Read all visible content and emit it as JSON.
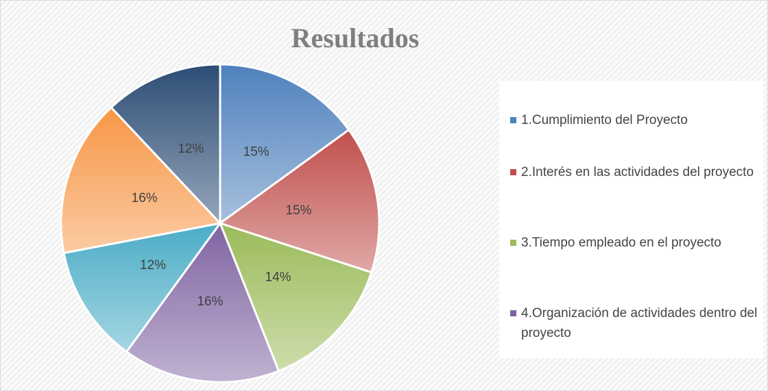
{
  "chart_data": {
    "type": "pie",
    "title": "Resultados",
    "categories": [
      "1.Cumplimiento del Proyecto",
      "2.Interés en las actividades del proyecto",
      "3.Tiempo empleado en el proyecto",
      "4.Organización de actividades dentro del proyecto",
      null,
      null,
      null
    ],
    "values": [
      15,
      15,
      14,
      16,
      12,
      16,
      12
    ],
    "value_labels": [
      "15%",
      "15%",
      "14%",
      "16%",
      "12%",
      "16%",
      "12%"
    ],
    "colors": [
      "#4f81bd",
      "#c0504d",
      "#9bbb59",
      "#8064a2",
      "#4bacc6",
      "#f79646",
      "#2c4d75"
    ]
  }
}
